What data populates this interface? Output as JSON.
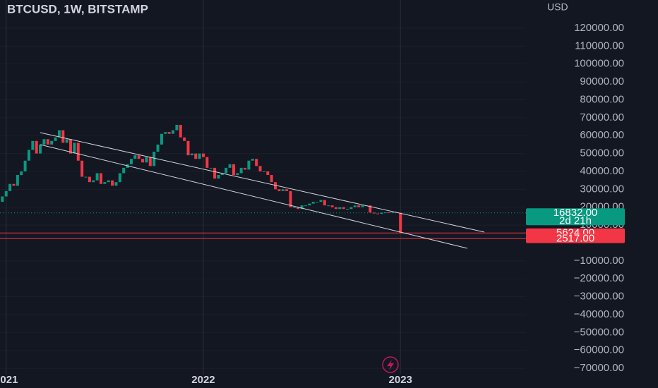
{
  "chart_data": {
    "type": "candlestick",
    "title": "BTCUSD, 1W, BITSTAMP",
    "y_unit": "USD",
    "up_color": "#089981",
    "down_color": "#f23645",
    "open": [
      21000,
      23000,
      26000,
      29000,
      33000,
      32000,
      38000,
      40000,
      46000,
      52000,
      57000,
      50000,
      55000,
      58000,
      55000,
      57000,
      59000,
      63000,
      56000,
      58000,
      50000,
      56000,
      46000,
      37000,
      37000,
      34000,
      35000,
      39000,
      33000,
      34000,
      35000,
      32000,
      34000,
      39000,
      42000,
      44000,
      47000,
      49000,
      47000,
      45000,
      48000,
      43000,
      51000,
      55000,
      61000,
      62000,
      61000,
      63000,
      66000,
      59000,
      57000,
      49000,
      50000,
      47000,
      50000,
      48000,
      42000,
      42000,
      36000,
      38000,
      39000,
      42000,
      44000,
      38000,
      39000,
      42000,
      41000,
      46000,
      47000,
      43000,
      40000,
      40000,
      38000,
      34000,
      30000,
      29000,
      30000,
      29000,
      20000,
      20000,
      19000,
      21000,
      21000,
      22000,
      23000,
      23000,
      24000,
      21000,
      21000,
      20000,
      19000,
      20000,
      19000,
      19000,
      20000,
      21000,
      20000,
      21000,
      21000,
      17000,
      16500,
      16300,
      17000,
      17100,
      16800,
      17200,
      16900
    ],
    "close": [
      23000,
      26000,
      29000,
      33000,
      32000,
      38000,
      40000,
      46000,
      52000,
      57000,
      50000,
      55000,
      58000,
      55000,
      57000,
      59000,
      63000,
      56000,
      58000,
      50000,
      56000,
      46000,
      37000,
      37000,
      34000,
      35000,
      39000,
      33000,
      34000,
      35000,
      32000,
      34000,
      39000,
      42000,
      44000,
      47000,
      49000,
      47000,
      45000,
      48000,
      43000,
      51000,
      55000,
      61000,
      62000,
      61000,
      63000,
      66000,
      59000,
      57000,
      49000,
      50000,
      47000,
      50000,
      48000,
      42000,
      42000,
      36000,
      38000,
      39000,
      42000,
      44000,
      38000,
      39000,
      42000,
      41000,
      46000,
      47000,
      43000,
      40000,
      40000,
      38000,
      34000,
      30000,
      29000,
      30000,
      29000,
      20000,
      20000,
      19000,
      21000,
      21000,
      22000,
      23000,
      23000,
      24000,
      21000,
      21000,
      20000,
      19000,
      20000,
      19000,
      19000,
      20000,
      21000,
      20000,
      21000,
      21000,
      17000,
      16500,
      16300,
      17000,
      17100,
      16800,
      17200,
      16900,
      5624
    ],
    "ylim": [
      -81000,
      135750
    ],
    "yticks": [
      {
        "value": 120000,
        "label": "120000.00"
      },
      {
        "value": 110000,
        "label": "110000.00"
      },
      {
        "value": 100000,
        "label": "100000.00"
      },
      {
        "value": 90000,
        "label": "90000.00"
      },
      {
        "value": 80000,
        "label": "80000.00"
      },
      {
        "value": 70000,
        "label": "70000.00"
      },
      {
        "value": 60000,
        "label": "60000.00"
      },
      {
        "value": 50000,
        "label": "50000.00"
      },
      {
        "value": 40000,
        "label": "40000.00"
      },
      {
        "value": 30000,
        "label": "30000.00"
      },
      {
        "value": 20000,
        "label": "20000.00"
      },
      {
        "value": 10000,
        "label": "10000.00"
      },
      {
        "value": -10000,
        "label": "−10000.00"
      },
      {
        "value": -20000,
        "label": "−20000.00"
      },
      {
        "value": -30000,
        "label": "−30000.00"
      },
      {
        "value": -40000,
        "label": "−40000.00"
      },
      {
        "value": -50000,
        "label": "−50000.00"
      },
      {
        "value": -60000,
        "label": "−60000.00"
      },
      {
        "value": -70000,
        "label": "−70000.00"
      }
    ],
    "xticks": [
      {
        "value": 2,
        "label": "2021"
      },
      {
        "value": 54,
        "label": "2022"
      },
      {
        "value": 106,
        "label": "2023"
      }
    ],
    "price_lines": [
      {
        "value": 16832,
        "label": "16832.00",
        "color": "#089981",
        "style": "dotted"
      },
      {
        "value": 5624,
        "label": "5624.00",
        "color": "#f23645",
        "style": "solid"
      },
      {
        "value": 2517,
        "label": "2517.00",
        "color": "#f23645",
        "style": "solid"
      }
    ],
    "countdown": "2d 21h"
  }
}
